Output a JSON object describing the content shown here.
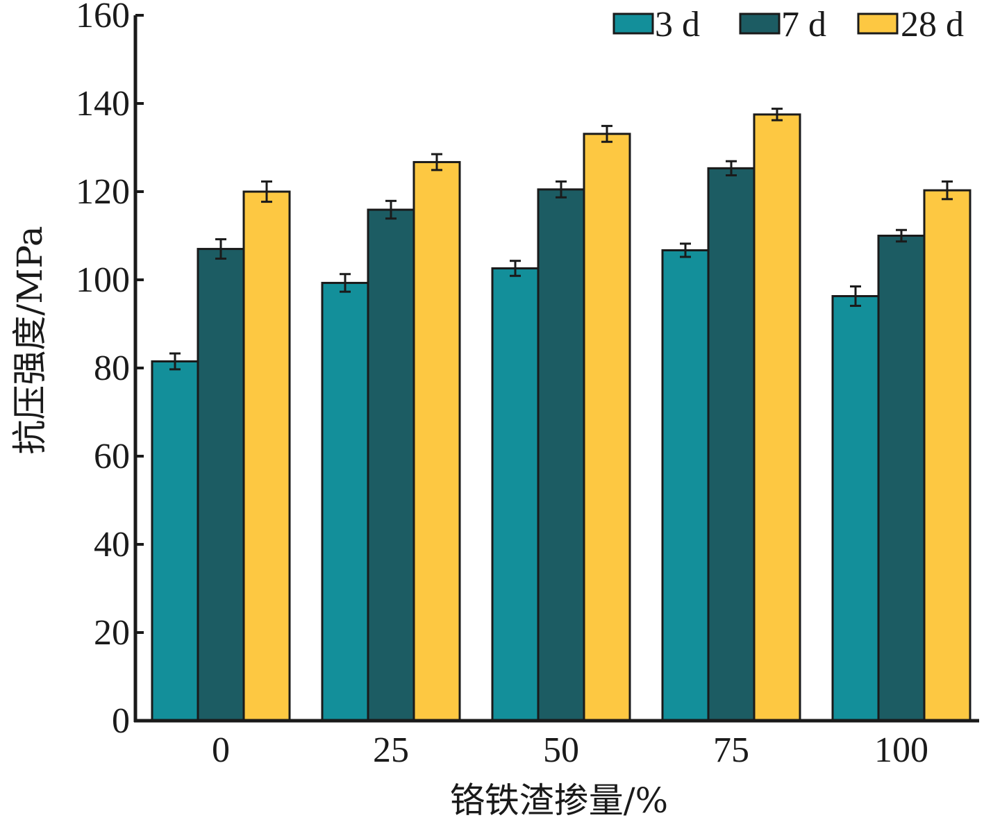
{
  "chart_data": {
    "type": "bar",
    "title": "",
    "xlabel": "铬铁渣掺量/%",
    "ylabel": "抗压强度/MPa",
    "categories": [
      "0",
      "25",
      "50",
      "75",
      "100"
    ],
    "ylim": [
      0,
      160
    ],
    "yticks": [
      "0",
      "20",
      "40",
      "60",
      "80",
      "100",
      "120",
      "140",
      "160"
    ],
    "legend_position": "top-right",
    "grid": false,
    "series": [
      {
        "name": "3 d",
        "color": "#138f9a",
        "values": [
          81.5,
          99.3,
          102.6,
          106.7,
          96.3
        ],
        "errors": [
          1.8,
          2.0,
          1.7,
          1.5,
          2.2
        ]
      },
      {
        "name": "7 d",
        "color": "#1c5c63",
        "values": [
          107.0,
          115.9,
          120.5,
          125.3,
          110.0
        ],
        "errors": [
          2.2,
          2.0,
          1.8,
          1.6,
          1.3
        ]
      },
      {
        "name": "28 d",
        "color": "#fdc842",
        "values": [
          120.0,
          126.7,
          133.1,
          137.5,
          120.3
        ],
        "errors": [
          2.3,
          1.8,
          1.8,
          1.3,
          2.0
        ]
      }
    ]
  }
}
